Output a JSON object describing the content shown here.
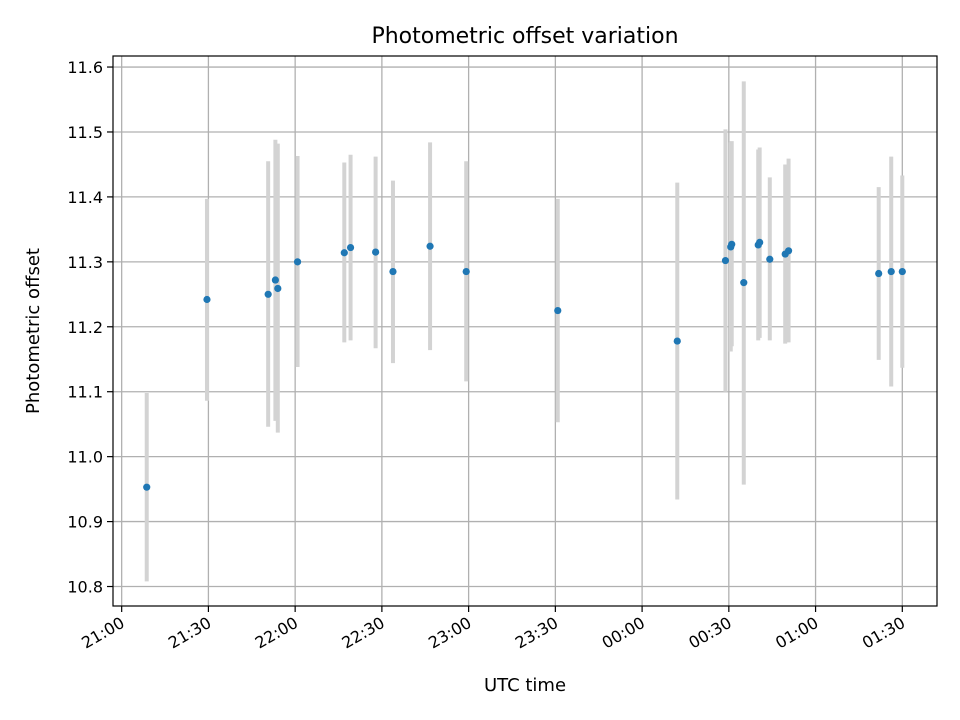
{
  "chart_data": {
    "type": "scatter",
    "title": "Photometric offset variation",
    "xlabel": "UTC time",
    "ylabel": "Photometric offset",
    "x_axis": {
      "kind": "time",
      "start": "21:00",
      "end": "01:30",
      "range": [
        "20:57",
        "01:42"
      ],
      "tick_labels": [
        "21:00",
        "21:30",
        "22:00",
        "22:30",
        "23:00",
        "23:30",
        "00:00",
        "00:30",
        "01:00",
        "01:30"
      ]
    },
    "y_axis": {
      "range": [
        10.77,
        11.617
      ],
      "ticks": [
        10.8,
        10.9,
        11.0,
        11.1,
        11.2,
        11.3,
        11.4,
        11.5,
        11.6
      ],
      "tick_labels": [
        "10.8",
        "10.9",
        "11.0",
        "11.1",
        "11.2",
        "11.3",
        "11.4",
        "11.5",
        "11.6"
      ]
    },
    "grid": true,
    "colors": {
      "point": "#1f77b4",
      "errorbar": "#d3d3d3"
    },
    "points": [
      {
        "t": "21:08:40",
        "y": 10.953,
        "lo": 10.808,
        "hi": 11.098
      },
      {
        "t": "21:29:30",
        "y": 11.242,
        "lo": 11.086,
        "hi": 11.397
      },
      {
        "t": "21:50:40",
        "y": 11.25,
        "lo": 11.046,
        "hi": 11.455
      },
      {
        "t": "21:53:10",
        "y": 11.272,
        "lo": 11.055,
        "hi": 11.488
      },
      {
        "t": "21:54:00",
        "y": 11.259,
        "lo": 11.037,
        "hi": 11.482
      },
      {
        "t": "22:00:50",
        "y": 11.3,
        "lo": 11.138,
        "hi": 11.463
      },
      {
        "t": "22:17:00",
        "y": 11.314,
        "lo": 11.176,
        "hi": 11.453
      },
      {
        "t": "22:19:10",
        "y": 11.322,
        "lo": 11.179,
        "hi": 11.465
      },
      {
        "t": "22:27:50",
        "y": 11.315,
        "lo": 11.167,
        "hi": 11.462
      },
      {
        "t": "22:33:50",
        "y": 11.285,
        "lo": 11.144,
        "hi": 11.425
      },
      {
        "t": "22:46:40",
        "y": 11.324,
        "lo": 11.164,
        "hi": 11.484
      },
      {
        "t": "22:59:10",
        "y": 11.285,
        "lo": 11.116,
        "hi": 11.455
      },
      {
        "t": "23:30:50",
        "y": 11.225,
        "lo": 11.053,
        "hi": 11.397
      },
      {
        "t": "00:12:10",
        "y": 11.178,
        "lo": 10.934,
        "hi": 11.422
      },
      {
        "t": "00:28:50",
        "y": 11.302,
        "lo": 11.1,
        "hi": 11.504
      },
      {
        "t": "00:30:40",
        "y": 11.323,
        "lo": 11.162,
        "hi": 11.484
      },
      {
        "t": "00:31:00",
        "y": 11.327,
        "lo": 11.17,
        "hi": 11.486
      },
      {
        "t": "00:35:10",
        "y": 11.268,
        "lo": 10.957,
        "hi": 11.578
      },
      {
        "t": "00:40:10",
        "y": 11.326,
        "lo": 11.179,
        "hi": 11.473
      },
      {
        "t": "00:40:40",
        "y": 11.33,
        "lo": 11.183,
        "hi": 11.476
      },
      {
        "t": "00:44:10",
        "y": 11.304,
        "lo": 11.179,
        "hi": 11.43
      },
      {
        "t": "00:49:30",
        "y": 11.312,
        "lo": 11.174,
        "hi": 11.45
      },
      {
        "t": "00:50:40",
        "y": 11.317,
        "lo": 11.176,
        "hi": 11.459
      },
      {
        "t": "01:21:50",
        "y": 11.282,
        "lo": 11.149,
        "hi": 11.415
      },
      {
        "t": "01:26:10",
        "y": 11.285,
        "lo": 11.108,
        "hi": 11.462
      },
      {
        "t": "01:30:00",
        "y": 11.285,
        "lo": 11.137,
        "hi": 11.433
      }
    ]
  }
}
